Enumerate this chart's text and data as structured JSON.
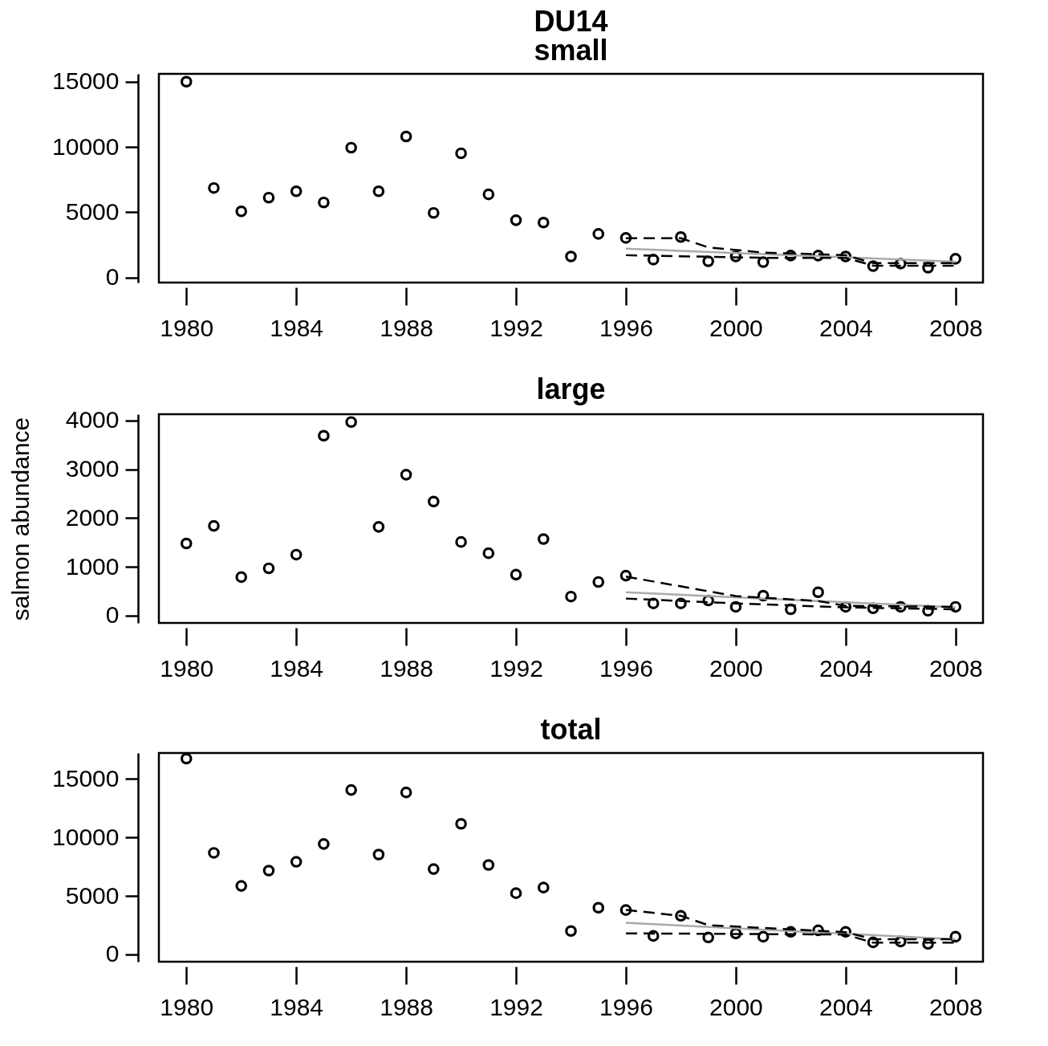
{
  "chart_data": [
    {
      "type": "scatter",
      "title": "DU14",
      "subtitle": "small",
      "xlim": [
        1979,
        2009
      ],
      "ylim": [
        -400,
        15600
      ],
      "xticks": [
        1980,
        1984,
        1988,
        1992,
        1996,
        2000,
        2004,
        2008
      ],
      "yticks": [
        0,
        5000,
        10000,
        15000
      ],
      "x": [
        1980,
        1981,
        1982,
        1983,
        1984,
        1985,
        1986,
        1987,
        1988,
        1989,
        1990,
        1991,
        1992,
        1993,
        1994,
        1995,
        1996,
        1997,
        1998,
        1999,
        2000,
        2001,
        2002,
        2003,
        2004,
        2005,
        2006,
        2007,
        2008
      ],
      "series": [
        {
          "type": "scatter",
          "color": "#000000",
          "marker": "circle",
          "values": [
            15000,
            6850,
            5060,
            6110,
            6600,
            5740,
            9940,
            6600,
            10800,
            4940,
            9510,
            6360,
            4380,
            4200,
            1600,
            3330,
            3020,
            1360,
            3090,
            1230,
            1600,
            1170,
            1670,
            1670,
            1600,
            860,
            1050,
            740,
            1420
          ]
        },
        {
          "type": "line",
          "color": "#aaaaaa",
          "line_style": "solid",
          "x": [
            1996,
            2008
          ],
          "values": [
            2200,
            1200
          ]
        },
        {
          "type": "line",
          "color": "#000000",
          "line_style": "dashed",
          "x": [
            1996,
            1998,
            1999,
            2001,
            2004,
            2005,
            2008
          ],
          "values": [
            3000,
            3000,
            2300,
            1900,
            1700,
            1100,
            1100
          ]
        },
        {
          "type": "line",
          "color": "#000000",
          "line_style": "dashed",
          "x": [
            1996,
            2001,
            2004,
            2005,
            2008
          ],
          "values": [
            1700,
            1500,
            1500,
            900,
            900
          ]
        }
      ]
    },
    {
      "type": "scatter",
      "title": "large",
      "ylabel": "salmon abundance",
      "xlim": [
        1979,
        2009
      ],
      "ylim": [
        -150,
        4130
      ],
      "xticks": [
        1980,
        1984,
        1988,
        1992,
        1996,
        2000,
        2004,
        2008
      ],
      "yticks": [
        0,
        1000,
        2000,
        3000,
        4000
      ],
      "x": [
        1980,
        1981,
        1982,
        1983,
        1984,
        1985,
        1986,
        1987,
        1988,
        1989,
        1990,
        1991,
        1992,
        1993,
        1994,
        1995,
        1996,
        1997,
        1998,
        1999,
        2000,
        2001,
        2002,
        2003,
        2004,
        2005,
        2006,
        2007,
        2008
      ],
      "series": [
        {
          "type": "scatter",
          "color": "#000000",
          "marker": "circle",
          "values": [
            1480,
            1840,
            790,
            970,
            1250,
            3690,
            3970,
            1820,
            2890,
            2340,
            1510,
            1280,
            840,
            1570,
            390,
            690,
            820,
            250,
            250,
            310,
            180,
            410,
            130,
            480,
            180,
            150,
            180,
            100,
            180
          ]
        },
        {
          "type": "line",
          "color": "#aaaaaa",
          "line_style": "solid",
          "x": [
            1996,
            2008
          ],
          "values": [
            480,
            170
          ]
        },
        {
          "type": "line",
          "color": "#000000",
          "line_style": "dashed",
          "x": [
            1996,
            1997,
            2000,
            2003,
            2004,
            2008
          ],
          "values": [
            800,
            700,
            400,
            300,
            200,
            180
          ]
        },
        {
          "type": "line",
          "color": "#000000",
          "line_style": "dashed",
          "x": [
            1996,
            2000,
            2004,
            2008
          ],
          "values": [
            350,
            250,
            170,
            130
          ]
        }
      ]
    },
    {
      "type": "scatter",
      "title": "total",
      "xlim": [
        1979,
        2009
      ],
      "ylim": [
        -620,
        17200
      ],
      "xticks": [
        1980,
        1984,
        1988,
        1992,
        1996,
        2000,
        2004,
        2008
      ],
      "yticks": [
        0,
        5000,
        10000,
        15000
      ],
      "x": [
        1980,
        1981,
        1982,
        1983,
        1984,
        1985,
        1986,
        1987,
        1988,
        1989,
        1990,
        1991,
        1992,
        1993,
        1994,
        1995,
        1996,
        1997,
        1998,
        1999,
        2000,
        2001,
        2002,
        2003,
        2004,
        2005,
        2006,
        2007,
        2008
      ],
      "series": [
        {
          "type": "scatter",
          "color": "#000000",
          "marker": "circle",
          "values": [
            16720,
            8670,
            5850,
            7160,
            7910,
            9430,
            14040,
            8530,
            13830,
            7290,
            11150,
            7640,
            5230,
            5710,
            2000,
            3990,
            3790,
            1580,
            3300,
            1450,
            1790,
            1510,
            1930,
            2060,
            1930,
            1030,
            1100,
            900,
            1510
          ]
        },
        {
          "type": "line",
          "color": "#aaaaaa",
          "line_style": "solid",
          "x": [
            1996,
            2008
          ],
          "values": [
            2700,
            1300
          ]
        },
        {
          "type": "line",
          "color": "#000000",
          "line_style": "dashed",
          "x": [
            1996,
            1998,
            1999,
            2004,
            2005,
            2008
          ],
          "values": [
            3800,
            3300,
            2500,
            1900,
            1300,
            1300
          ]
        },
        {
          "type": "line",
          "color": "#000000",
          "line_style": "dashed",
          "x": [
            1996,
            2004,
            2005,
            2008
          ],
          "values": [
            1800,
            1700,
            1000,
            1000
          ]
        }
      ]
    }
  ]
}
